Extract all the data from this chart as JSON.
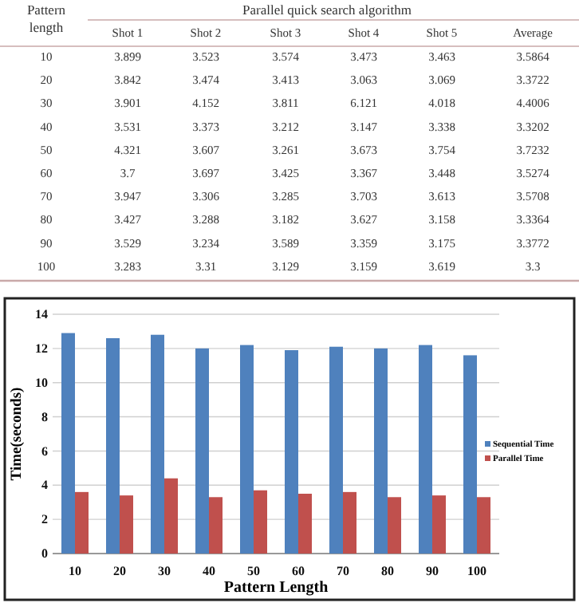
{
  "chart_data": [
    {
      "type": "heatmap",
      "data_labels": true,
      "title": "Parallel quick search algorithm",
      "ylabel": "Pattern length",
      "categories": [
        "Shot 1",
        "Shot 2",
        "Shot 3",
        "Shot 4",
        "Shot 5",
        "Average"
      ],
      "y_categories": [
        "10",
        "20",
        "30",
        "40",
        "50",
        "60",
        "70",
        "80",
        "90",
        "100"
      ],
      "cells": [
        [
          3.899,
          3.523,
          3.574,
          3.473,
          3.463,
          3.5864
        ],
        [
          3.842,
          3.474,
          3.413,
          3.063,
          3.069,
          3.3722
        ],
        [
          3.901,
          4.152,
          3.811,
          6.121,
          4.018,
          4.4006
        ],
        [
          3.531,
          3.373,
          3.212,
          3.147,
          3.338,
          3.3202
        ],
        [
          4.321,
          3.607,
          3.261,
          3.673,
          3.754,
          3.7232
        ],
        [
          3.7,
          3.697,
          3.425,
          3.367,
          3.448,
          3.5274
        ],
        [
          3.947,
          3.306,
          3.285,
          3.703,
          3.613,
          3.5708
        ],
        [
          3.427,
          3.288,
          3.182,
          3.627,
          3.158,
          3.3364
        ],
        [
          3.529,
          3.234,
          3.589,
          3.359,
          3.175,
          3.3772
        ],
        [
          3.283,
          3.31,
          3.129,
          3.159,
          3.619,
          3.3
        ]
      ]
    },
    {
      "type": "bar",
      "xlabel": "Pattern Length",
      "ylabel": "Time(seconds)",
      "categories": [
        "10",
        "20",
        "30",
        "40",
        "50",
        "60",
        "70",
        "80",
        "90",
        "100"
      ],
      "series": [
        {
          "name": "Sequential Time",
          "color": "#4f81bd",
          "values": [
            12.9,
            12.6,
            12.8,
            12.0,
            12.2,
            11.9,
            12.1,
            12.0,
            12.2,
            11.6
          ]
        },
        {
          "name": "Parallel Time",
          "color": "#c0504d",
          "values": [
            3.6,
            3.4,
            4.4,
            3.3,
            3.7,
            3.5,
            3.6,
            3.3,
            3.4,
            3.3
          ]
        }
      ],
      "ylim": [
        0,
        14
      ],
      "yticks": [
        0,
        2,
        4,
        6,
        8,
        10,
        12,
        14
      ],
      "grid": "y",
      "legend": "right"
    }
  ]
}
